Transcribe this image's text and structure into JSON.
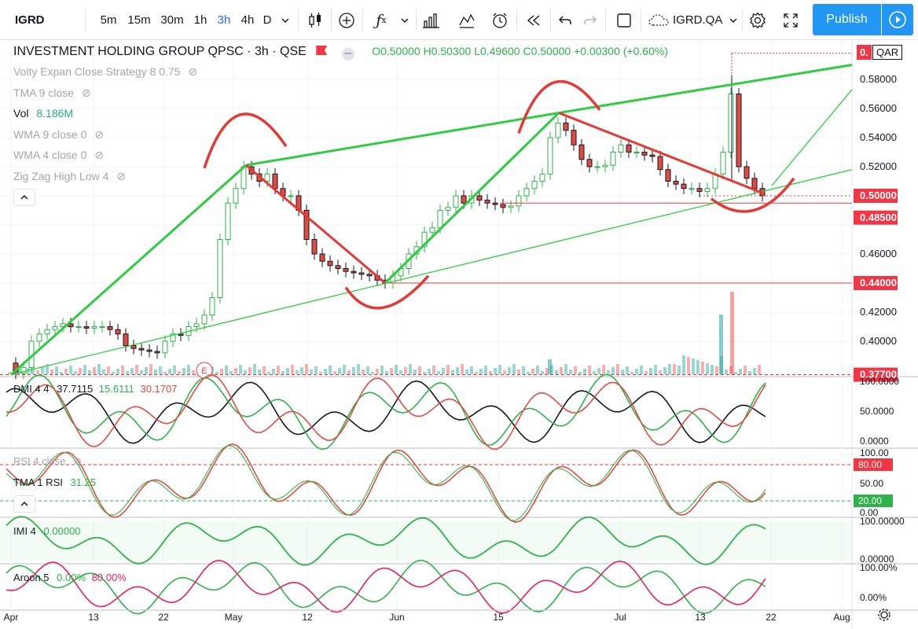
{
  "toolbar": {
    "symbol": "IGRD",
    "intervals": [
      "5m",
      "15m",
      "30m",
      "1h",
      "3h",
      "4h",
      "D"
    ],
    "active_interval": "3h",
    "compare_symbol": "IGRD.QA",
    "publish_label": "Publish"
  },
  "legend": {
    "title": "INVESTMENT HOLDING GROUP QPSC",
    "interval": "3h",
    "exchange": "QSE",
    "ohlc": {
      "o": "O0.50000",
      "h": "H0.50300",
      "l": "L0.49600",
      "c": "C0.50000",
      "chg": "+0.00300 (+0.60%)"
    },
    "indicators": [
      {
        "label": "Volty Expan Close Strategy 8 0.75",
        "hidden": true
      },
      {
        "label": "TMA 9 close",
        "hidden": true
      },
      {
        "label": "Vol",
        "value": "8.186M",
        "hidden": false
      },
      {
        "label": "WMA 9 close 0",
        "hidden": true
      },
      {
        "label": "WMA 4 close 0",
        "hidden": true
      },
      {
        "label": "Zig Zag High Low 4",
        "hidden": true
      }
    ],
    "currency": "QAR"
  },
  "price_axis": {
    "ticks": [
      "0.58000",
      "0.56000",
      "0.54000",
      "0.52000",
      "0.50000",
      "0.46000",
      "0.44000",
      "0.42000",
      "0.40000"
    ],
    "badges": [
      {
        "text": "0.50000",
        "color": "#f23645"
      },
      {
        "text": "0.48500",
        "color": "#f23645"
      },
      {
        "text": "0.44000",
        "color": "#f23645"
      },
      {
        "text": "0.37700",
        "color": "#f23645"
      }
    ],
    "top_badge": "0."
  },
  "panes": {
    "dmi": {
      "label": "DMI 4 4",
      "v1": "37.7115",
      "v2": "15.6111",
      "v3": "30.1707",
      "ticks": [
        "100.0000",
        "50.0000",
        "0.0000"
      ]
    },
    "rsi": {
      "label1": "RSI 4 close",
      "label2": "TMA 1 RSI",
      "value": "31.25",
      "ticks": [
        "100.00",
        "50.00",
        "0.00"
      ],
      "upper": "80.00",
      "lower": "20.00"
    },
    "imi": {
      "label": "IMI 4",
      "value": "0.00000",
      "ticks": [
        "100.00000",
        "0.00000"
      ]
    },
    "aroon": {
      "label": "Aroon 5",
      "v1": "0.00%",
      "v2": "80.00%",
      "ticks": [
        "100.00%",
        "0.00%"
      ]
    }
  },
  "time_axis": [
    "Apr",
    "13",
    "22",
    "May",
    "12",
    "Jun",
    "15",
    "Jul",
    "13",
    "22",
    "Aug"
  ],
  "event_marker": "E",
  "colors": {
    "up": "#2db34a",
    "down": "#e24b42",
    "badge": "#f23645",
    "accent": "#2196f3",
    "trend_green": "#2ecc40",
    "trend_red": "#e53935"
  }
}
